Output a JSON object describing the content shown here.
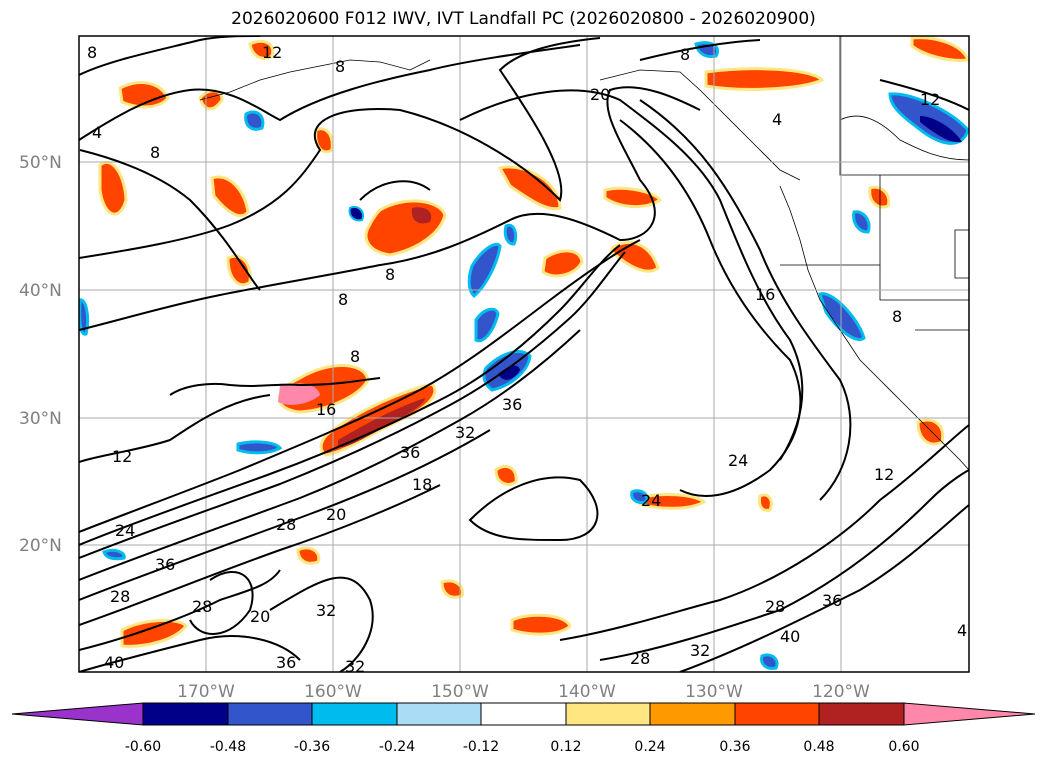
{
  "title": "2026020600 F012 IWV, IVT Landfall PC (2026020800 - 2026020900)",
  "lat_labels": [
    "50°N",
    "40°N",
    "30°N",
    "20°N"
  ],
  "lon_labels": [
    "170°W",
    "160°W",
    "150°W",
    "140°W",
    "130°W",
    "120°W"
  ],
  "contour_labels": [
    "8",
    "12",
    "8",
    "4",
    "8",
    "20",
    "8",
    "4",
    "12",
    "8",
    "8",
    "8",
    "16",
    "8",
    "12",
    "16",
    "36",
    "32",
    "36",
    "24",
    "24",
    "12",
    "24",
    "28",
    "20",
    "18",
    "36",
    "28",
    "28",
    "20",
    "32",
    "40",
    "36",
    "32",
    "28",
    "28",
    "32",
    "36",
    "40",
    "4"
  ],
  "colorbar": {
    "colors": [
      "#9933cc",
      "#000088",
      "#3355cc",
      "#00bbee",
      "#aaddf5",
      "#ffffff",
      "#ffe680",
      "#ff9900",
      "#ff4400",
      "#b02222",
      "#ff88aa"
    ],
    "ticks": [
      "-0.60",
      "-0.48",
      "-0.36",
      "-0.24",
      "-0.12",
      "0.12",
      "0.24",
      "0.36",
      "0.48",
      "0.60"
    ]
  },
  "colors": {
    "frame": "#000000",
    "grid": "#aaaaaa",
    "tick_text": "#808080",
    "contour": "#000000"
  }
}
